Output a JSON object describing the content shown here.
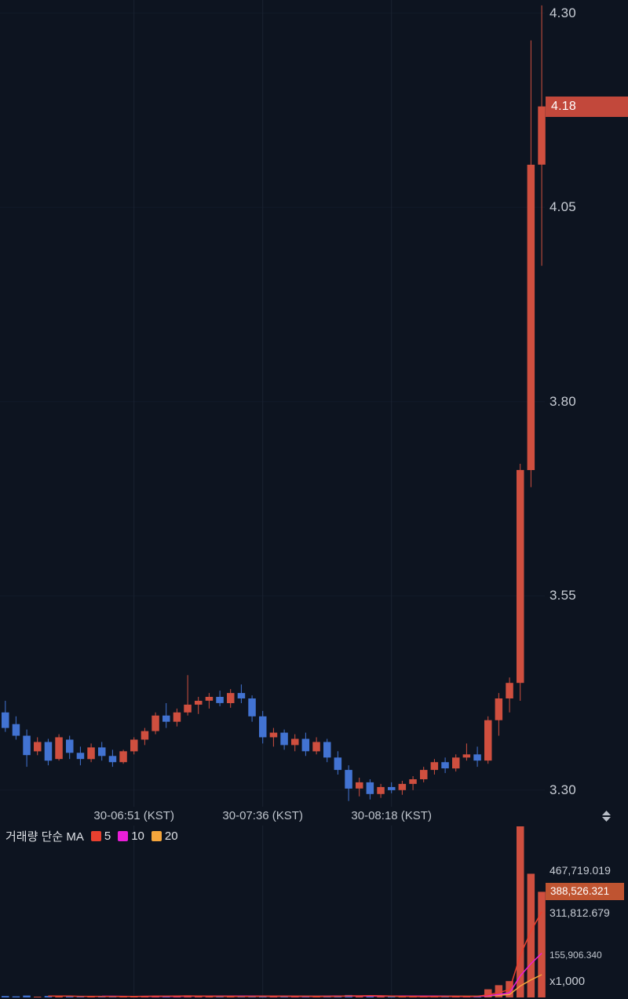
{
  "colors": {
    "background": "#0d1420",
    "up": "#cf4f3f",
    "down": "#4273d2",
    "grid_vertical": "#1a2231",
    "grid_horizontal": "#121a28",
    "axis_text": "#c8cdd5",
    "price_tag_bg": "#c2483b",
    "price_tag_text": "#ffffff",
    "volume_tag_bg": "#bf5431",
    "volume_tag_text": "#ffffff",
    "ma5": "#e8402f",
    "ma10": "#e91ed8",
    "ma20": "#f5a63c",
    "icon": "#b9bfc8"
  },
  "price_axis": {
    "ticks": [
      {
        "label": "4.30",
        "value": 4.3
      },
      {
        "label": "4.05",
        "value": 4.05
      },
      {
        "label": "3.80",
        "value": 3.8
      },
      {
        "label": "3.55",
        "value": 3.55
      },
      {
        "label": "3.30",
        "value": 3.3
      }
    ],
    "last_price": {
      "label": "4.18",
      "value": 4.18
    }
  },
  "volume_axis": {
    "ticks": [
      {
        "label": "467,719.019",
        "value": 467719.019,
        "small": false
      },
      {
        "label": "311,812.679",
        "value": 311812.679,
        "small": false
      },
      {
        "label": "155,906.340",
        "value": 155906.34,
        "small": true
      }
    ],
    "current": {
      "label": "388,526.321",
      "value": 388526.321
    },
    "unit_label": "x1,000"
  },
  "volume_legend": {
    "title": "거래량 단순 MA",
    "items": [
      {
        "label": "5",
        "color_key": "ma5"
      },
      {
        "label": "10",
        "color_key": "ma10"
      },
      {
        "label": "20",
        "color_key": "ma20"
      }
    ]
  },
  "chart_data": {
    "type": "candlestick",
    "price_ylim": [
      3.28,
      4.32
    ],
    "last_price": 4.18,
    "last_volume": 388526.321,
    "volume_scale_note": "x1,000",
    "time_axis_labels": [
      {
        "label": "30-06:51 (KST)",
        "index": 12
      },
      {
        "label": "30-07:36 (KST)",
        "index": 24
      },
      {
        "label": "30-08:18 (KST)",
        "index": 36
      }
    ],
    "candles_ohlcv": [
      [
        3.4,
        3.415,
        3.375,
        3.38,
        5200
      ],
      [
        3.385,
        3.395,
        3.365,
        3.37,
        4100
      ],
      [
        3.37,
        3.378,
        3.33,
        3.345,
        6800
      ],
      [
        3.35,
        3.368,
        3.345,
        3.362,
        3000
      ],
      [
        3.362,
        3.366,
        3.332,
        3.338,
        5600
      ],
      [
        3.34,
        3.372,
        3.338,
        3.368,
        4700
      ],
      [
        3.365,
        3.37,
        3.34,
        3.348,
        3900
      ],
      [
        3.348,
        3.356,
        3.332,
        3.34,
        3500
      ],
      [
        3.34,
        3.36,
        3.336,
        3.355,
        2800
      ],
      [
        3.355,
        3.362,
        3.338,
        3.344,
        3300
      ],
      [
        3.344,
        3.352,
        3.33,
        3.336,
        4200
      ],
      [
        3.336,
        3.352,
        3.334,
        3.35,
        3100
      ],
      [
        3.35,
        3.368,
        3.346,
        3.365,
        4400
      ],
      [
        3.365,
        3.38,
        3.358,
        3.376,
        5100
      ],
      [
        3.376,
        3.4,
        3.372,
        3.396,
        6200
      ],
      [
        3.396,
        3.412,
        3.38,
        3.388,
        4800
      ],
      [
        3.388,
        3.405,
        3.382,
        3.4,
        3700
      ],
      [
        3.4,
        3.448,
        3.396,
        3.41,
        7400
      ],
      [
        3.41,
        3.42,
        3.398,
        3.415,
        3600
      ],
      [
        3.415,
        3.425,
        3.405,
        3.42,
        3200
      ],
      [
        3.42,
        3.428,
        3.408,
        3.412,
        3800
      ],
      [
        3.412,
        3.43,
        3.406,
        3.425,
        3400
      ],
      [
        3.425,
        3.436,
        3.412,
        3.418,
        4600
      ],
      [
        3.418,
        3.422,
        3.388,
        3.395,
        5300
      ],
      [
        3.395,
        3.402,
        3.36,
        3.368,
        6100
      ],
      [
        3.368,
        3.38,
        3.356,
        3.374,
        3500
      ],
      [
        3.374,
        3.378,
        3.352,
        3.358,
        4000
      ],
      [
        3.358,
        3.372,
        3.35,
        3.366,
        2900
      ],
      [
        3.366,
        3.374,
        3.344,
        3.35,
        4500
      ],
      [
        3.35,
        3.368,
        3.346,
        3.362,
        3100
      ],
      [
        3.362,
        3.366,
        3.336,
        3.342,
        5200
      ],
      [
        3.342,
        3.35,
        3.32,
        3.326,
        6600
      ],
      [
        3.326,
        3.332,
        3.286,
        3.302,
        8900
      ],
      [
        3.302,
        3.316,
        3.292,
        3.31,
        5400
      ],
      [
        3.31,
        3.314,
        3.288,
        3.295,
        6200
      ],
      [
        3.295,
        3.308,
        3.29,
        3.304,
        3000
      ],
      [
        3.304,
        3.31,
        3.296,
        3.3,
        2500
      ],
      [
        3.3,
        3.312,
        3.294,
        3.308,
        2700
      ],
      [
        3.308,
        3.318,
        3.3,
        3.314,
        3100
      ],
      [
        3.314,
        3.33,
        3.31,
        3.326,
        3800
      ],
      [
        3.326,
        3.34,
        3.32,
        3.336,
        4300
      ],
      [
        3.336,
        3.342,
        3.322,
        3.328,
        3600
      ],
      [
        3.328,
        3.346,
        3.324,
        3.342,
        4800
      ],
      [
        3.342,
        3.36,
        3.338,
        3.346,
        4000
      ],
      [
        3.346,
        3.356,
        3.33,
        3.338,
        5200
      ],
      [
        3.338,
        3.395,
        3.334,
        3.39,
        30000
      ],
      [
        3.39,
        3.425,
        3.37,
        3.418,
        45000
      ],
      [
        3.418,
        3.445,
        3.4,
        3.438,
        60000
      ],
      [
        3.438,
        3.72,
        3.415,
        3.712,
        630000
      ],
      [
        3.712,
        4.265,
        3.69,
        4.105,
        455000
      ],
      [
        4.105,
        4.31,
        3.975,
        4.18,
        388526.321
      ]
    ]
  }
}
